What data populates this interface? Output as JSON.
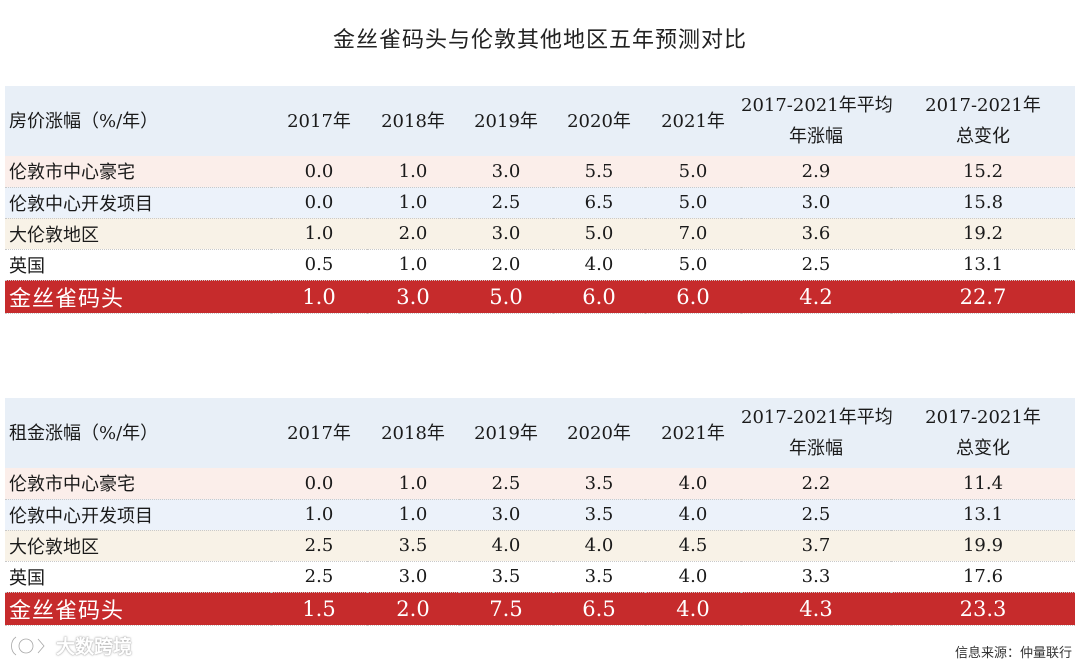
{
  "title": "金丝雀码头与伦敦其他地区五年预测对比",
  "chart_data": [
    {
      "type": "table",
      "headers": [
        "房价涨幅（%/年）",
        "2017年",
        "2018年",
        "2019年",
        "2020年",
        "2021年",
        "2017-2021年平均\n年涨幅",
        "2017-2021年\n总变化"
      ],
      "rows": [
        {
          "label": "伦敦市中心豪宅",
          "values": [
            "0.0",
            "1.0",
            "3.0",
            "5.5",
            "5.0",
            "2.9",
            "15.2"
          ],
          "style": "pink"
        },
        {
          "label": "伦敦中心开发项目",
          "values": [
            "0.0",
            "1.0",
            "2.5",
            "6.5",
            "5.0",
            "3.0",
            "15.8"
          ],
          "style": "blue"
        },
        {
          "label": "大伦敦地区",
          "values": [
            "1.0",
            "2.0",
            "3.0",
            "5.0",
            "7.0",
            "3.6",
            "19.2"
          ],
          "style": "beige"
        },
        {
          "label": "英国",
          "values": [
            "0.5",
            "1.0",
            "2.0",
            "4.0",
            "5.0",
            "2.5",
            "13.1"
          ],
          "style": "white"
        },
        {
          "label": "金丝雀码头",
          "values": [
            "1.0",
            "3.0",
            "5.0",
            "6.0",
            "6.0",
            "4.2",
            "22.7"
          ],
          "style": "red"
        }
      ]
    },
    {
      "type": "table",
      "headers": [
        "租金涨幅（%/年）",
        "2017年",
        "2018年",
        "2019年",
        "2020年",
        "2021年",
        "2017-2021年平均\n年涨幅",
        "2017-2021年\n总变化"
      ],
      "rows": [
        {
          "label": "伦敦市中心豪宅",
          "values": [
            "0.0",
            "1.0",
            "2.5",
            "3.5",
            "4.0",
            "2.2",
            "11.4"
          ],
          "style": "pink"
        },
        {
          "label": "伦敦中心开发项目",
          "values": [
            "1.0",
            "1.0",
            "3.0",
            "3.5",
            "4.0",
            "2.5",
            "13.1"
          ],
          "style": "blue"
        },
        {
          "label": "大伦敦地区",
          "values": [
            "2.5",
            "3.5",
            "4.0",
            "4.0",
            "4.5",
            "3.7",
            "19.9"
          ],
          "style": "beige"
        },
        {
          "label": "英国",
          "values": [
            "2.5",
            "3.0",
            "3.5",
            "3.5",
            "4.0",
            "3.3",
            "17.6"
          ],
          "style": "white"
        },
        {
          "label": "金丝雀码头",
          "values": [
            "1.5",
            "2.0",
            "7.5",
            "6.5",
            "4.0",
            "4.3",
            "23.3"
          ],
          "style": "red"
        }
      ]
    }
  ],
  "source": "信息来源：仲量联行",
  "watermark": "大数跨境"
}
